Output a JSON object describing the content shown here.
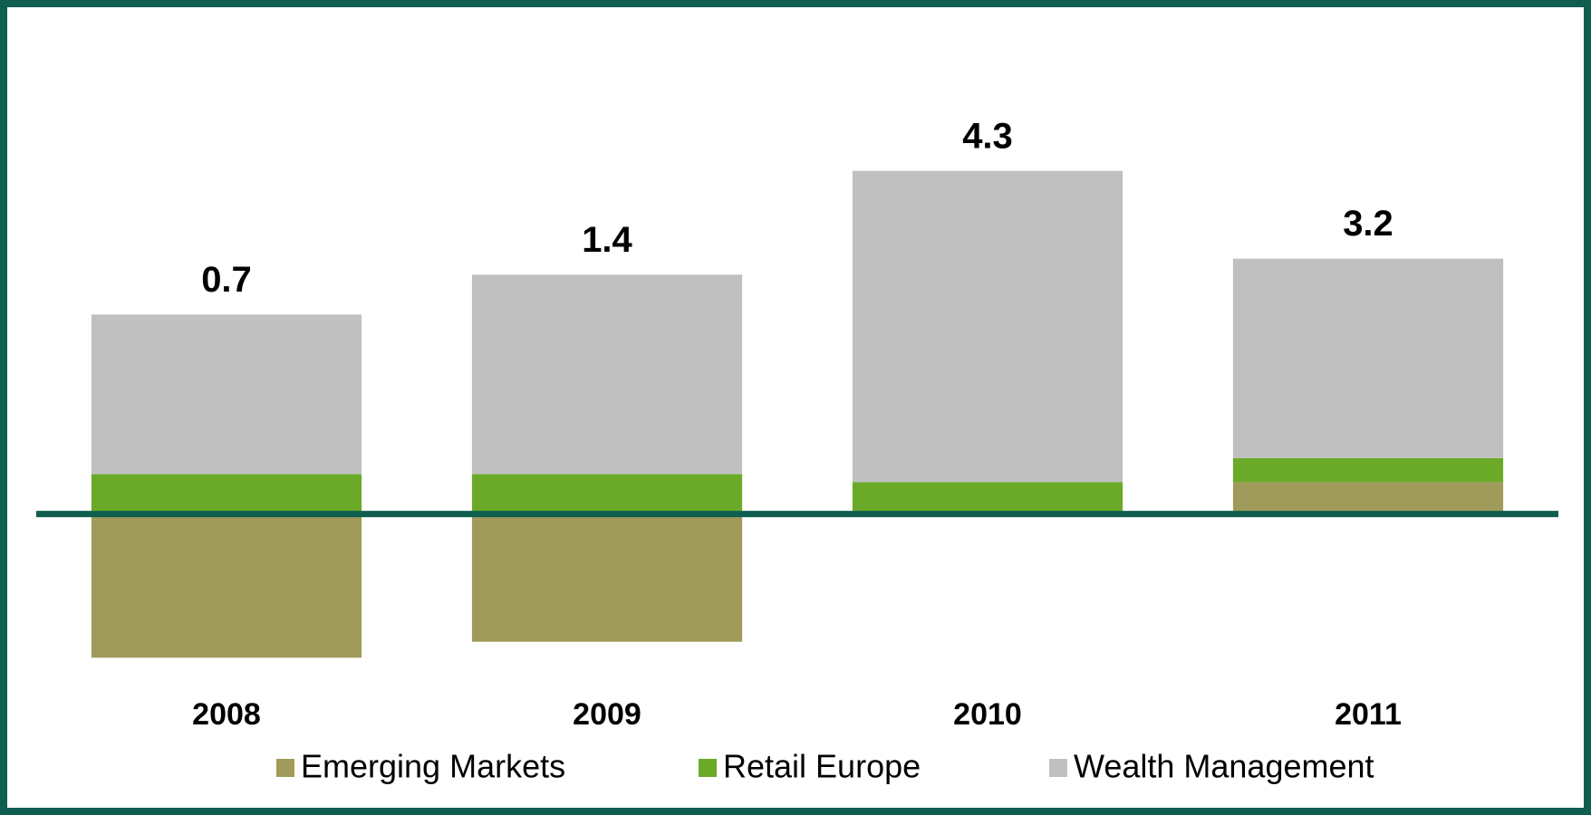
{
  "chart_data": {
    "type": "bar",
    "stacked": true,
    "categories": [
      "2008",
      "2009",
      "2010",
      "2011"
    ],
    "series": [
      {
        "name": "Emerging Markets",
        "color": "#a09b5a",
        "values": [
          -1.8,
          -1.6,
          0,
          0.4
        ]
      },
      {
        "name": "Retail Europe",
        "color": "#6aaa28",
        "values": [
          0.5,
          0.5,
          0.4,
          0.3
        ]
      },
      {
        "name": "Wealth Management",
        "color": "#c0c0c0",
        "values": [
          2.0,
          2.5,
          3.9,
          2.5
        ]
      }
    ],
    "totals": [
      0.7,
      1.4,
      4.3,
      3.2
    ],
    "ylim": [
      -2.5,
      5
    ]
  }
}
